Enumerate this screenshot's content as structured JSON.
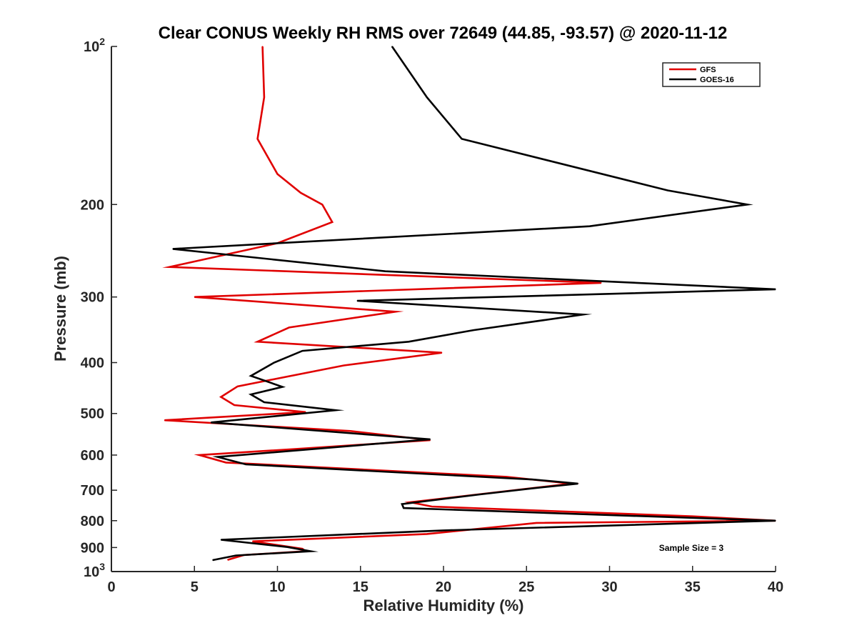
{
  "chart_data": {
    "type": "line",
    "title": "Clear CONUS Weekly RH RMS over 72649 (44.85, -93.57) @ 2020-11-12",
    "xlabel": "Relative Humidity (%)",
    "ylabel": "Pressure (mb)",
    "xlim": [
      0,
      40
    ],
    "ylim": [
      100,
      1000
    ],
    "y_scale": "log",
    "y_reversed": true,
    "x_ticks": [
      "0",
      "5",
      "10",
      "15",
      "20",
      "25",
      "30",
      "35",
      "40"
    ],
    "y_ticks": [
      {
        "value": 100,
        "label": "10",
        "sup": "2"
      },
      {
        "value": 200,
        "label": "200"
      },
      {
        "value": 300,
        "label": "300"
      },
      {
        "value": 400,
        "label": "400"
      },
      {
        "value": 500,
        "label": "500"
      },
      {
        "value": 600,
        "label": "600"
      },
      {
        "value": 700,
        "label": "700"
      },
      {
        "value": 800,
        "label": "800"
      },
      {
        "value": 900,
        "label": "900"
      },
      {
        "value": 1000,
        "label": "10",
        "sup": "3"
      }
    ],
    "grid": false,
    "legend_position": "top-right",
    "annotation": "Sample Size = 3",
    "series": [
      {
        "name": "GFS",
        "color": "#e00000",
        "points": [
          [
            9.1,
            100
          ],
          [
            9.2,
            125
          ],
          [
            8.8,
            150
          ],
          [
            10.0,
            175
          ],
          [
            11.4,
            190
          ],
          [
            12.7,
            200
          ],
          [
            13.3,
            216
          ],
          [
            10.0,
            237
          ],
          [
            3.5,
            263
          ],
          [
            29.5,
            282
          ],
          [
            5.0,
            300
          ],
          [
            17.1,
            320
          ],
          [
            10.7,
            343
          ],
          [
            8.8,
            365
          ],
          [
            19.9,
            383
          ],
          [
            14.0,
            405
          ],
          [
            7.6,
            444
          ],
          [
            6.6,
            465
          ],
          [
            7.4,
            482
          ],
          [
            11.7,
            497
          ],
          [
            3.2,
            515
          ],
          [
            14.4,
            540
          ],
          [
            19.2,
            562
          ],
          [
            10.8,
            585
          ],
          [
            5.3,
            600
          ],
          [
            6.9,
            620
          ],
          [
            23.8,
            660
          ],
          [
            27.7,
            680
          ],
          [
            18.0,
            738
          ],
          [
            19.3,
            752
          ],
          [
            35.0,
            785
          ],
          [
            40.0,
            800
          ],
          [
            25.6,
            808
          ],
          [
            19.0,
            848
          ],
          [
            8.5,
            876
          ],
          [
            11.5,
            905
          ],
          [
            11.7,
            915
          ],
          [
            8.0,
            930
          ],
          [
            7.0,
            950
          ]
        ]
      },
      {
        "name": "GOES-16",
        "color": "#000000",
        "points": [
          [
            16.9,
            100
          ],
          [
            19.0,
            125
          ],
          [
            21.1,
            150
          ],
          [
            33.5,
            188
          ],
          [
            38.3,
            200
          ],
          [
            28.8,
            220
          ],
          [
            3.7,
            243
          ],
          [
            16.5,
            268
          ],
          [
            40.0,
            290
          ],
          [
            14.8,
            305
          ],
          [
            28.4,
            324
          ],
          [
            21.8,
            347
          ],
          [
            17.9,
            365
          ],
          [
            11.5,
            380
          ],
          [
            9.8,
            400
          ],
          [
            8.4,
            424
          ],
          [
            10.3,
            445
          ],
          [
            8.4,
            460
          ],
          [
            9.2,
            476
          ],
          [
            13.5,
            493
          ],
          [
            6.0,
            520
          ],
          [
            19.2,
            560
          ],
          [
            6.4,
            605
          ],
          [
            8.1,
            625
          ],
          [
            25.4,
            668
          ],
          [
            28.1,
            680
          ],
          [
            25.4,
            694
          ],
          [
            22.2,
            713
          ],
          [
            17.5,
            744
          ],
          [
            17.6,
            757
          ],
          [
            40.0,
            800
          ],
          [
            20.0,
            835
          ],
          [
            6.6,
            870
          ],
          [
            10.6,
            898
          ],
          [
            12.0,
            915
          ],
          [
            7.5,
            932
          ],
          [
            6.1,
            951
          ]
        ]
      }
    ]
  }
}
